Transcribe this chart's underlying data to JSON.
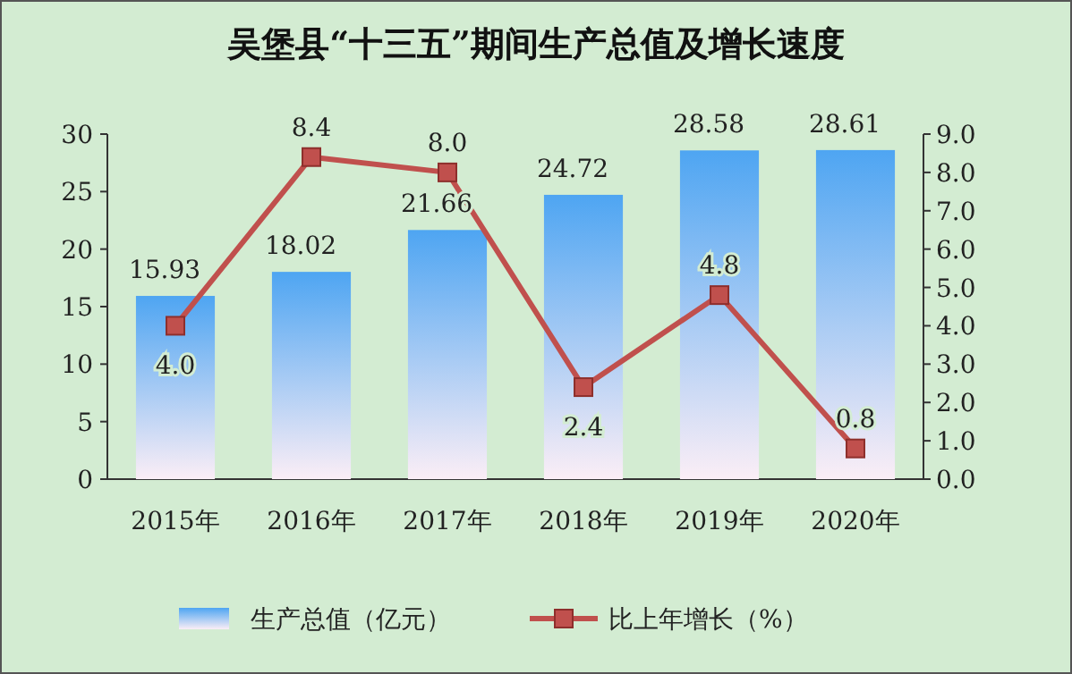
{
  "chart_data": {
    "type": "bar",
    "title": "吴堡县“十三五”期间生产总值及增长速度",
    "categories": [
      "2015年",
      "2016年",
      "2017年",
      "2018年",
      "2019年",
      "2020年"
    ],
    "series": [
      {
        "name": "生产总值（亿元）",
        "color": "#4ea5f2",
        "values": [
          15.93,
          18.02,
          21.66,
          24.72,
          28.58,
          28.61
        ],
        "value_labels": [
          "15.93",
          "18.02",
          "21.66",
          "24.72",
          "28.58",
          "28.61"
        ]
      },
      {
        "name": "比上年增长（%）",
        "type": "line",
        "axis": "y2",
        "color": "#c0504d",
        "values": [
          4.0,
          8.4,
          8.0,
          2.4,
          4.8,
          0.8
        ],
        "value_labels": [
          "4.0",
          "8.4",
          "8.0",
          "2.4",
          "4.8",
          "0.8"
        ]
      }
    ],
    "ylim": [
      0,
      30
    ],
    "yticks": [
      0,
      5,
      10,
      15,
      20,
      25,
      30
    ],
    "y2lim": [
      0,
      9
    ],
    "y2ticks": [
      {
        "value": 0,
        "label": "0.0"
      },
      {
        "value": 1,
        "label": "1.0"
      },
      {
        "value": 2,
        "label": "2.0"
      },
      {
        "value": 3,
        "label": "3.0"
      },
      {
        "value": 4,
        "label": "4.0"
      },
      {
        "value": 5,
        "label": "5.0"
      },
      {
        "value": 6,
        "label": "6.0"
      },
      {
        "value": 7,
        "label": "7.0"
      },
      {
        "value": 8,
        "label": "8.0"
      },
      {
        "value": 9,
        "label": "9.0"
      }
    ],
    "marker": "square",
    "legend": "bottom",
    "grid": false
  }
}
